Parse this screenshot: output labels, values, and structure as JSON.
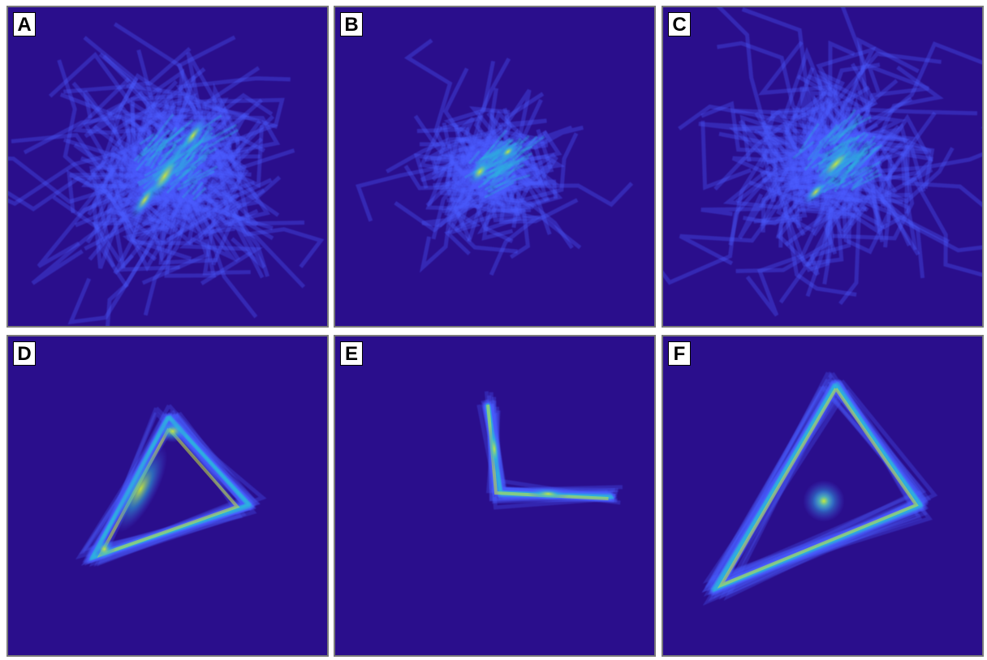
{
  "figure": {
    "colors": {
      "background": "#2a0e8c",
      "stroke": "#4a5cff",
      "mid": "#2fb0e0",
      "hot": "#c8e83a"
    },
    "panels": [
      {
        "id": "A",
        "label": "A",
        "shape": "diffuse-quadrilateral-cloud"
      },
      {
        "id": "B",
        "label": "B",
        "shape": "compact-cloud"
      },
      {
        "id": "C",
        "label": "C",
        "shape": "diffuse-cloud"
      },
      {
        "id": "D",
        "label": "D",
        "shape": "triangle"
      },
      {
        "id": "E",
        "label": "E",
        "shape": "angle"
      },
      {
        "id": "F",
        "label": "F",
        "shape": "triangle-with-central-hotspot"
      }
    ]
  }
}
